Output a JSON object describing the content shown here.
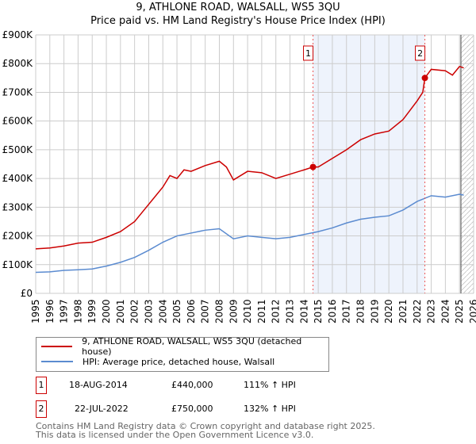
{
  "title": "9, ATHLONE ROAD, WALSALL, WS5 3QU",
  "subtitle": "Price paid vs. HM Land Registry's House Price Index (HPI)",
  "chart_data": {
    "type": "line",
    "title": "9, ATHLONE ROAD, WALSALL, WS5 3QU",
    "subtitle": "Price paid vs. HM Land Registry's House Price Index (HPI)",
    "xlim": [
      1995,
      2026
    ],
    "ylim": [
      0,
      900000
    ],
    "x_ticks": [
      "1995",
      "1996",
      "1997",
      "1998",
      "1999",
      "2000",
      "2001",
      "2002",
      "2003",
      "2004",
      "2005",
      "2006",
      "2007",
      "2008",
      "2009",
      "2010",
      "2011",
      "2012",
      "2013",
      "2014",
      "2015",
      "2016",
      "2017",
      "2018",
      "2019",
      "2020",
      "2021",
      "2022",
      "2023",
      "2024",
      "2025",
      "2026"
    ],
    "y_ticks": [
      {
        "v": 0,
        "label": "£0"
      },
      {
        "v": 100000,
        "label": "£100K"
      },
      {
        "v": 200000,
        "label": "£200K"
      },
      {
        "v": 300000,
        "label": "£300K"
      },
      {
        "v": 400000,
        "label": "£400K"
      },
      {
        "v": 500000,
        "label": "£500K"
      },
      {
        "v": 600000,
        "label": "£600K"
      },
      {
        "v": 700000,
        "label": "£700K"
      },
      {
        "v": 800000,
        "label": "£800K"
      },
      {
        "v": 900000,
        "label": "£900K"
      }
    ],
    "grid": true,
    "shaded_range": [
      2014.63,
      2022.55
    ],
    "hatched_from": 2025.1,
    "series": [
      {
        "name": "9, ATHLONE ROAD, WALSALL, WS5 3QU (detached house)",
        "color": "#cc0000",
        "x": [
          1995,
          1996,
          1997,
          1998,
          1999,
          2000,
          2001,
          2002,
          2003,
          2004,
          2004.5,
          2005,
          2005.5,
          2006,
          2007,
          2008,
          2008.5,
          2009,
          2010,
          2011,
          2012,
          2013,
          2014,
          2014.63,
          2015,
          2016,
          2017,
          2018,
          2019,
          2020,
          2021,
          2022,
          2022.4,
          2022.55,
          2023,
          2024,
          2024.5,
          2025,
          2025.3
        ],
        "y": [
          155000,
          158000,
          165000,
          175000,
          178000,
          195000,
          215000,
          250000,
          310000,
          370000,
          410000,
          400000,
          430000,
          425000,
          445000,
          460000,
          440000,
          395000,
          425000,
          420000,
          400000,
          415000,
          430000,
          440000,
          440000,
          470000,
          500000,
          535000,
          555000,
          565000,
          605000,
          670000,
          700000,
          750000,
          780000,
          775000,
          760000,
          790000,
          785000
        ]
      },
      {
        "name": "HPI: Average price, detached house, Walsall",
        "color": "#5b8bd0",
        "x": [
          1995,
          1996,
          1997,
          1998,
          1999,
          2000,
          2001,
          2002,
          2003,
          2004,
          2005,
          2006,
          2007,
          2008,
          2009,
          2010,
          2011,
          2012,
          2013,
          2014,
          2015,
          2016,
          2017,
          2018,
          2019,
          2020,
          2021,
          2022,
          2023,
          2024,
          2025,
          2025.3
        ],
        "y": [
          73000,
          75000,
          80000,
          82000,
          85000,
          95000,
          108000,
          125000,
          150000,
          178000,
          200000,
          210000,
          220000,
          225000,
          190000,
          200000,
          195000,
          190000,
          195000,
          205000,
          215000,
          228000,
          245000,
          258000,
          265000,
          270000,
          290000,
          320000,
          340000,
          335000,
          345000,
          342000
        ]
      }
    ],
    "annotations": [
      {
        "label": "1",
        "x": 2014.63,
        "y": 440000
      },
      {
        "label": "2",
        "x": 2022.55,
        "y": 750000
      }
    ],
    "legend": "below"
  },
  "transactions": [
    {
      "num": "1",
      "date": "18-AUG-2014",
      "price": "£440,000",
      "hpi": "111% ↑ HPI"
    },
    {
      "num": "2",
      "date": "22-JUL-2022",
      "price": "£750,000",
      "hpi": "132% ↑ HPI"
    }
  ],
  "footer": [
    "Contains HM Land Registry data © Crown copyright and database right 2025.",
    "This data is licensed under the Open Government Licence v3.0."
  ]
}
